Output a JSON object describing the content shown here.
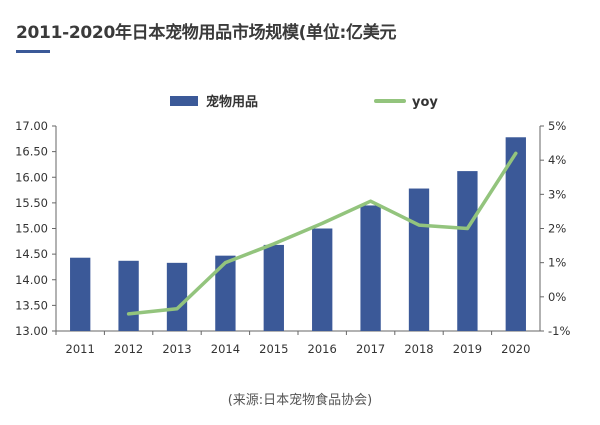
{
  "chart_data": {
    "type": "bar",
    "title": "2011-2020年日本宠物用品市场规模(单位:亿美元",
    "source": "(来源:日本宠物食品协会)",
    "categories": [
      "2011",
      "2012",
      "2013",
      "2014",
      "2015",
      "2016",
      "2017",
      "2018",
      "2019",
      "2020"
    ],
    "series": [
      {
        "name": "宠物用品",
        "type": "bar",
        "axis": "left",
        "color": "#3b5998",
        "values": [
          14.43,
          14.37,
          14.33,
          14.47,
          14.68,
          15.0,
          15.45,
          15.78,
          16.12,
          16.78
        ]
      },
      {
        "name": "yoy",
        "type": "line",
        "axis": "right",
        "color": "#93c47d",
        "values": [
          null,
          -0.5,
          -0.35,
          1.0,
          1.55,
          2.15,
          2.8,
          2.1,
          2.0,
          4.2
        ]
      }
    ],
    "y_left": {
      "min": 13.0,
      "max": 17.0,
      "ticks": [
        "13.00",
        "13.50",
        "14.00",
        "14.50",
        "15.00",
        "15.50",
        "16.00",
        "16.50",
        "17.00"
      ]
    },
    "y_right": {
      "min": -1,
      "max": 5,
      "ticks": [
        "-1%",
        "0%",
        "1%",
        "2%",
        "3%",
        "4%",
        "5%"
      ]
    },
    "grid": false,
    "legend": "top"
  }
}
